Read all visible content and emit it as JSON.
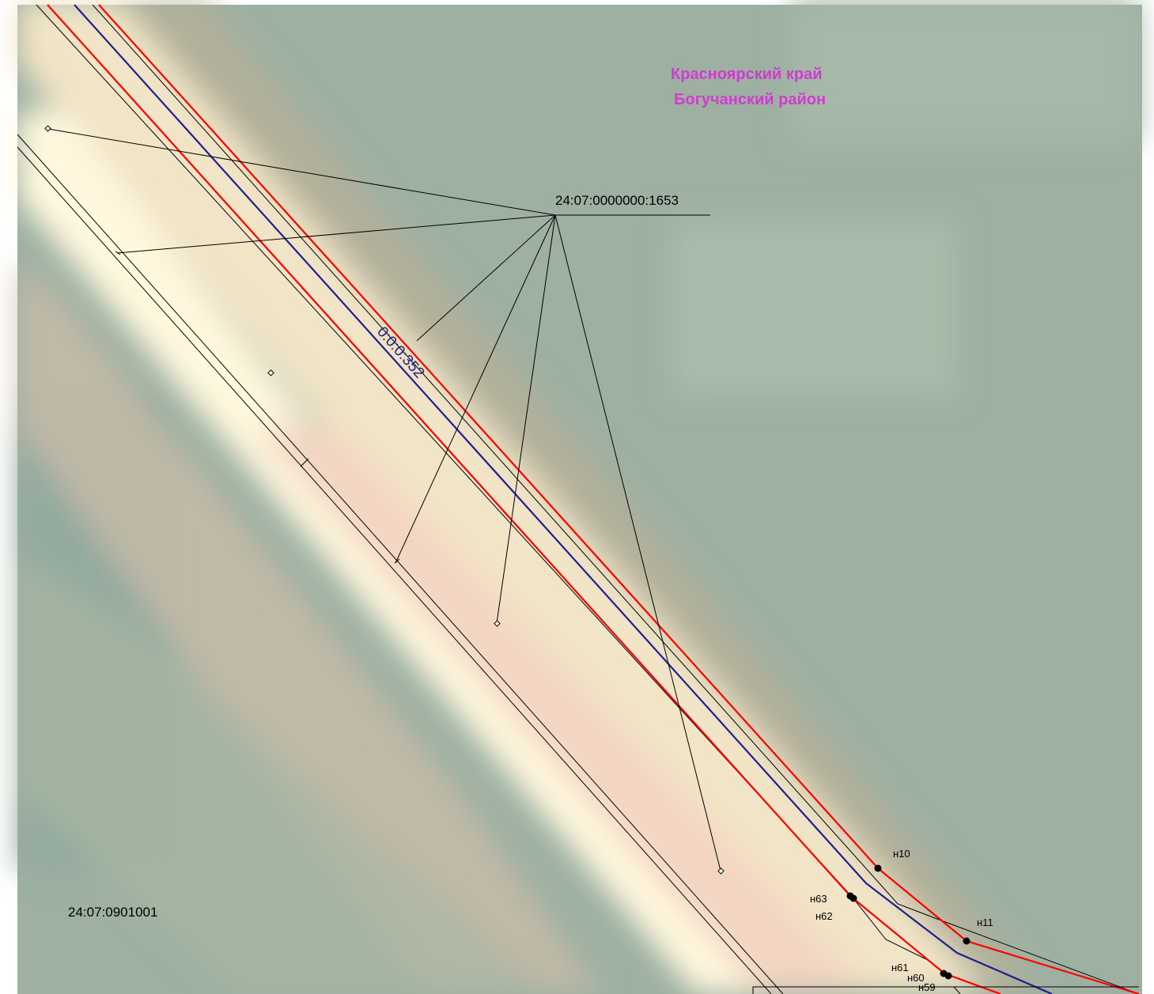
{
  "map": {
    "region_line1": "Красноярский край",
    "region_line2": "Богучанский район",
    "parcel_label": "24:07:0000000:1653",
    "road_label": "0:0:0:352",
    "quarter_label": "24:07:0901001",
    "points": {
      "n10": "н10",
      "n11": "н11",
      "n59": "н59",
      "n60": "н60",
      "n61": "н61",
      "n62": "н62",
      "n63": "н63"
    },
    "colors": {
      "region_text": "#d23bd0",
      "boundary_red": "#ff0000",
      "axis_blue": "#1f1f8f",
      "road_label_blue": "#1f1f8f",
      "lines_black": "#000000",
      "forest": "#9db0a2",
      "clearing": "#fdf3dc"
    }
  }
}
